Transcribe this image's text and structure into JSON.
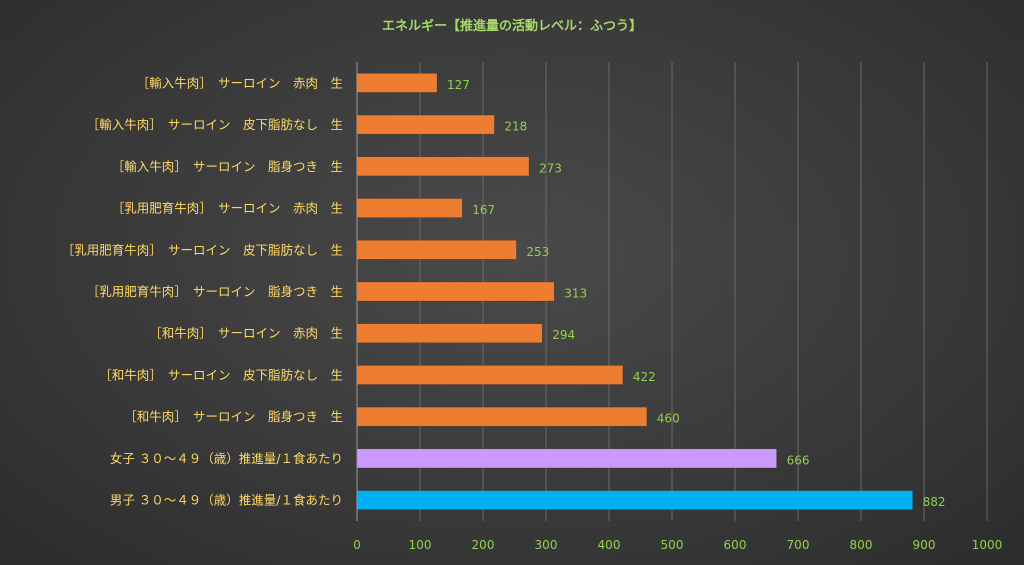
{
  "chart_data": {
    "type": "bar",
    "orientation": "horizontal",
    "title": "エネルギー【推進量の活動レベル：ふつう】",
    "categories": [
      "［輸入牛肉］　サーロイン　赤肉　生",
      "［輸入牛肉］　サーロイン　皮下脂肪なし　生",
      "［輸入牛肉］　サーロイン　脂身つき　生",
      "［乳用肥育牛肉］　サーロイン　赤肉　生",
      "［乳用肥育牛肉］　サーロイン　皮下脂肪なし　生",
      "［乳用肥育牛肉］　サーロイン　脂身つき　生",
      "［和牛肉］　サーロイン　赤肉　生",
      "［和牛肉］　サーロイン　皮下脂肪なし　生",
      "［和牛肉］　サーロイン　脂身つき　生",
      "女子 ３０～４９（歳）推進量/１食あたり",
      "男子 ３０～４９（歳）推進量/１食あたり"
    ],
    "values": [
      127,
      218,
      273,
      167,
      253,
      313,
      294,
      422,
      460,
      666,
      882
    ],
    "data_labels": [
      "127",
      "218",
      "273",
      "167",
      "253",
      "313",
      "294",
      "422",
      "460",
      "666",
      "882"
    ],
    "bar_colors": [
      "#ed7d31",
      "#ed7d31",
      "#ed7d31",
      "#ed7d31",
      "#ed7d31",
      "#ed7d31",
      "#ed7d31",
      "#ed7d31",
      "#ed7d31",
      "#cc99ff",
      "#00b0f0"
    ],
    "xlim": [
      0,
      1000
    ],
    "xticks": [
      0,
      100,
      200,
      300,
      400,
      500,
      600,
      700,
      800,
      900,
      1000
    ],
    "xtick_labels": [
      "0",
      "100",
      "200",
      "300",
      "400",
      "500",
      "600",
      "700",
      "800",
      "900",
      "1000"
    ],
    "grid": true,
    "legend": "none",
    "colors": {
      "title": "#a6d96a",
      "category_label": "#ffd966",
      "tick_label": "#92d050",
      "data_label": "#92d050",
      "gridline": "#6a6a6a",
      "axis": "#9a9a9a"
    }
  }
}
